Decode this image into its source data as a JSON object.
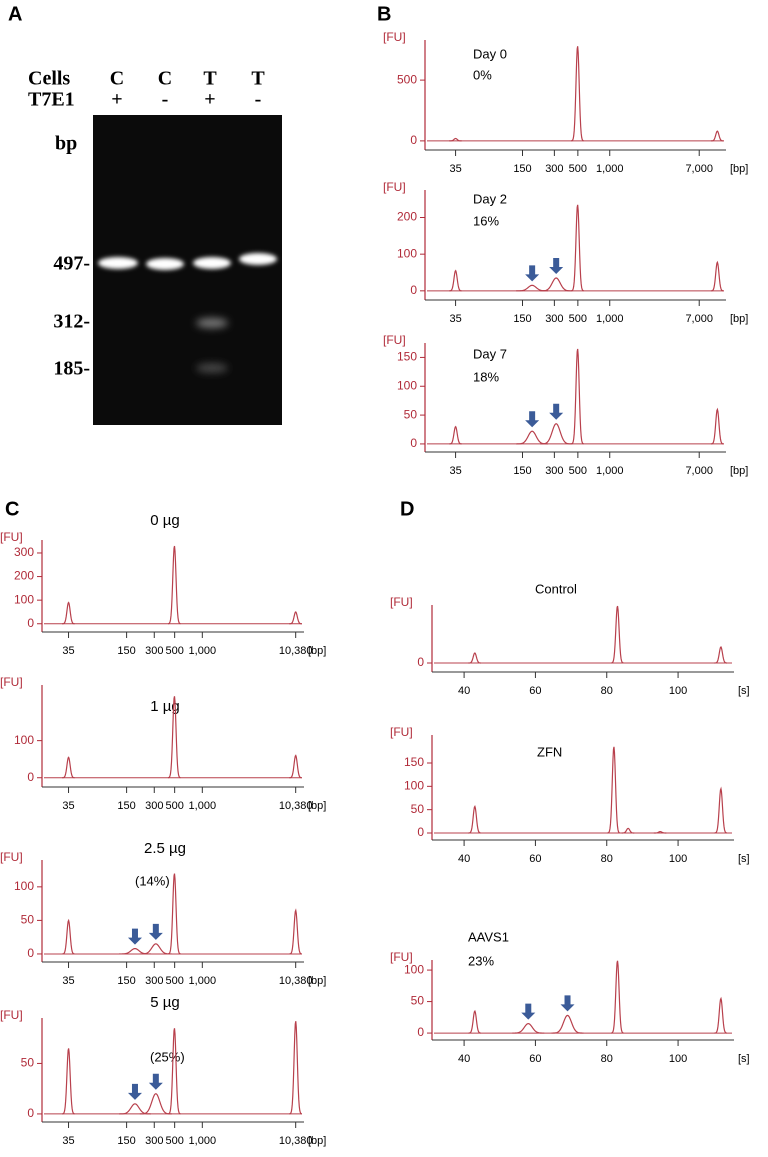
{
  "panel_a": {
    "label": "A",
    "row_labels": [
      "Cells",
      "T7E1"
    ],
    "lanes": [
      {
        "cells": "C",
        "t7e1": "+"
      },
      {
        "cells": "C",
        "t7e1": "-"
      },
      {
        "cells": "T",
        "t7e1": "+"
      },
      {
        "cells": "T",
        "t7e1": "-"
      }
    ],
    "unit": "bp",
    "markers": [
      "497-",
      "312-",
      "185-"
    ]
  },
  "panel_b": {
    "label": "B",
    "plots": [
      {
        "type": "electropherogram",
        "annotations": [
          "Day 0",
          "0%"
        ],
        "ylabel": "[FU]",
        "ylim": [
          -75,
          830
        ],
        "yticks": [
          0,
          500
        ],
        "log_x": true,
        "xlim": [
          18,
          11000
        ],
        "xunit": "[bp]",
        "xticks": [
          35,
          150,
          300,
          500,
          {
            "value": 1000,
            "label": "1,000"
          },
          {
            "value": 7000,
            "label": "7,000"
          }
        ],
        "color": "#b8404c",
        "peaks": [
          {
            "x": 35,
            "height": 20
          },
          {
            "x": 497,
            "height": 780
          },
          {
            "x": 10380,
            "height": 80
          }
        ]
      },
      {
        "type": "electropherogram",
        "annotations": [
          "Day 2",
          "16%"
        ],
        "ylabel": "[FU]",
        "ylim": [
          -25,
          275
        ],
        "yticks": [
          0,
          100,
          200
        ],
        "log_x": true,
        "xlim": [
          18,
          11000
        ],
        "xunit": "[bp]",
        "xticks": [
          35,
          150,
          300,
          500,
          {
            "value": 1000,
            "label": "1,000"
          },
          {
            "value": 7000,
            "label": "7,000"
          }
        ],
        "color": "#b8404c",
        "peaks": [
          {
            "x": 35,
            "height": 55
          },
          {
            "x": 185,
            "height": 15,
            "arrow": true
          },
          {
            "x": 312,
            "height": 35,
            "arrow": true
          },
          {
            "x": 497,
            "height": 235
          },
          {
            "x": 10380,
            "height": 78
          }
        ]
      },
      {
        "type": "electropherogram",
        "annotations": [
          "Day 7",
          "18%"
        ],
        "ylabel": "[FU]",
        "ylim": [
          -14,
          175
        ],
        "yticks": [
          0,
          50,
          100,
          150
        ],
        "log_x": true,
        "xlim": [
          18,
          11000
        ],
        "xunit": "[bp]",
        "xticks": [
          35,
          150,
          300,
          500,
          {
            "value": 1000,
            "label": "1,000"
          },
          {
            "value": 7000,
            "label": "7,000"
          }
        ],
        "color": "#b8404c",
        "peaks": [
          {
            "x": 35,
            "height": 30
          },
          {
            "x": 185,
            "height": 22,
            "arrow": true
          },
          {
            "x": 312,
            "height": 35,
            "arrow": true
          },
          {
            "x": 497,
            "height": 165
          },
          {
            "x": 10380,
            "height": 60
          }
        ]
      }
    ]
  },
  "panel_c": {
    "label": "C",
    "plots": [
      {
        "type": "electropherogram",
        "title": "0 µg",
        "annotations": [],
        "ylabel": "[FU]",
        "ylim": [
          -35,
          355
        ],
        "yticks": [
          0,
          100,
          200,
          300
        ],
        "log_x": true,
        "xlim": [
          18,
          11000
        ],
        "xunit": "[bp]",
        "xticks": [
          35,
          150,
          300,
          500,
          {
            "value": 1000,
            "label": "1,000"
          },
          {
            "value": 10380,
            "label": "10,380"
          }
        ],
        "color": "#b8404c",
        "peaks": [
          {
            "x": 35,
            "height": 90
          },
          {
            "x": 497,
            "height": 330
          },
          {
            "x": 10380,
            "height": 50
          }
        ]
      },
      {
        "type": "electropherogram",
        "title": "1 µg",
        "annotations": [],
        "ylabel": "[FU]",
        "ylim": [
          -25,
          250
        ],
        "yticks": [
          0,
          100
        ],
        "log_x": true,
        "xlim": [
          18,
          11000
        ],
        "xunit": "[bp]",
        "xticks": [
          35,
          150,
          300,
          500,
          {
            "value": 1000,
            "label": "1,000"
          },
          {
            "value": 10380,
            "label": "10,380"
          }
        ],
        "color": "#b8404c",
        "peaks": [
          {
            "x": 35,
            "height": 55
          },
          {
            "x": 497,
            "height": 220
          },
          {
            "x": 10380,
            "height": 60
          }
        ]
      },
      {
        "type": "electropherogram",
        "title": "2.5 µg",
        "annotations": [
          "(14%)"
        ],
        "ylabel": "[FU]",
        "ylim": [
          -12,
          140
        ],
        "yticks": [
          0,
          50,
          100
        ],
        "log_x": true,
        "xlim": [
          18,
          11000
        ],
        "xunit": "[bp]",
        "xticks": [
          35,
          150,
          300,
          500,
          {
            "value": 1000,
            "label": "1,000"
          },
          {
            "value": 10380,
            "label": "10,380"
          }
        ],
        "color": "#b8404c",
        "peaks": [
          {
            "x": 35,
            "height": 50
          },
          {
            "x": 185,
            "height": 8,
            "arrow": true
          },
          {
            "x": 312,
            "height": 15,
            "arrow": true
          },
          {
            "x": 497,
            "height": 120
          },
          {
            "x": 10380,
            "height": 65
          }
        ]
      },
      {
        "type": "electropherogram",
        "title": "5 µg",
        "annotations": [
          "(25%)"
        ],
        "ylabel": "[FU]",
        "ylim": [
          -8,
          95
        ],
        "yticks": [
          0,
          50
        ],
        "log_x": true,
        "xlim": [
          18,
          11000
        ],
        "xunit": "[bp]",
        "xticks": [
          35,
          150,
          300,
          500,
          {
            "value": 1000,
            "label": "1,000"
          },
          {
            "value": 10380,
            "label": "10,380"
          }
        ],
        "color": "#b8404c",
        "peaks": [
          {
            "x": 35,
            "height": 65
          },
          {
            "x": 185,
            "height": 10,
            "arrow": true
          },
          {
            "x": 312,
            "height": 20,
            "arrow": true
          },
          {
            "x": 497,
            "height": 85
          },
          {
            "x": 10380,
            "height": 92
          }
        ]
      }
    ]
  },
  "panel_d": {
    "label": "D",
    "plots": [
      {
        "type": "electropherogram",
        "annotations": [
          "Control"
        ],
        "ylabel": "[FU]",
        "ylim": [
          -9,
          58
        ],
        "yticks": [
          0
        ],
        "log_x": false,
        "xlim": [
          31,
          114
        ],
        "xunit": "[s]",
        "xticks": [
          40,
          60,
          80,
          100
        ],
        "color": "#b8404c",
        "peaks": [
          {
            "x": 43,
            "height": 10
          },
          {
            "x": 83,
            "height": 57
          },
          {
            "x": 112,
            "height": 16
          }
        ]
      },
      {
        "type": "electropherogram",
        "annotations": [
          "ZFN"
        ],
        "ylabel": "[FU]",
        "ylim": [
          -15,
          210
        ],
        "yticks": [
          0,
          50,
          100,
          150
        ],
        "log_x": false,
        "xlim": [
          31,
          114
        ],
        "xunit": "[s]",
        "xticks": [
          40,
          60,
          80,
          100
        ],
        "color": "#b8404c",
        "peaks": [
          {
            "x": 43,
            "height": 57
          },
          {
            "x": 82,
            "height": 185
          },
          {
            "x": 86,
            "height": 10
          },
          {
            "x": 95,
            "height": 3
          },
          {
            "x": 112,
            "height": 95
          }
        ]
      },
      {
        "type": "electropherogram",
        "annotations": [
          "AAVS1",
          "23%"
        ],
        "ylabel": "[FU]",
        "ylim": [
          -11,
          116
        ],
        "yticks": [
          0,
          50,
          100
        ],
        "log_x": false,
        "xlim": [
          31,
          114
        ],
        "xunit": "[s]",
        "xticks": [
          40,
          60,
          80,
          100
        ],
        "color": "#b8404c",
        "peaks": [
          {
            "x": 43,
            "height": 35
          },
          {
            "x": 58,
            "height": 15,
            "arrow": true
          },
          {
            "x": 69,
            "height": 28,
            "arrow": true
          },
          {
            "x": 83,
            "height": 115
          },
          {
            "x": 112,
            "height": 55
          }
        ]
      }
    ]
  }
}
